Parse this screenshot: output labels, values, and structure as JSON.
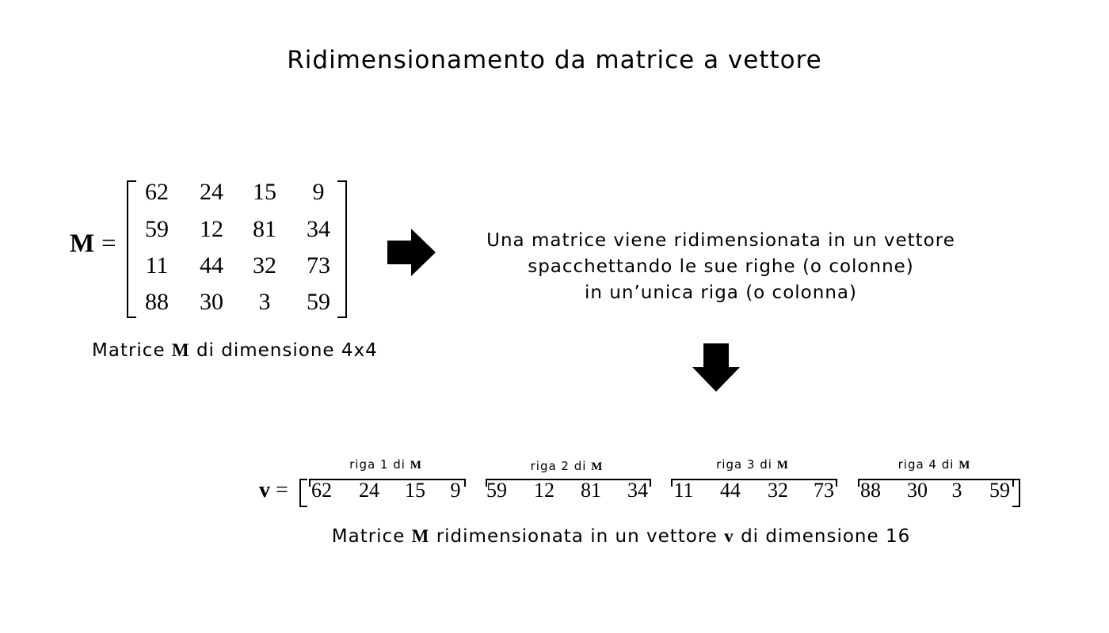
{
  "title": "Ridimensionamento da matrice a vettore",
  "matrix": {
    "symbol": "M",
    "equals": "=",
    "rows": [
      [
        "62",
        "24",
        "15",
        "9"
      ],
      [
        "59",
        "12",
        "81",
        "34"
      ],
      [
        "11",
        "44",
        "32",
        "73"
      ],
      [
        "88",
        "30",
        "3",
        "59"
      ]
    ],
    "caption_pre": "Matrice",
    "caption_symbol": "M",
    "caption_post": "di dimensione 4x4"
  },
  "explanation": {
    "lines": [
      "Una matrice viene ridimensionata in un vettore",
      "spacchettando le sue righe (o colonne)",
      "in un’unica riga (o colonna)"
    ]
  },
  "vector": {
    "symbol": "v",
    "equals": "=",
    "groups": [
      {
        "label": "riga 1 di",
        "label_symbol": "M",
        "values": [
          "62",
          "24",
          "15",
          "9"
        ]
      },
      {
        "label": "riga 2 di",
        "label_symbol": "M",
        "values": [
          "59",
          "12",
          "81",
          "34"
        ]
      },
      {
        "label": "riga 3 di",
        "label_symbol": "M",
        "values": [
          "11",
          "44",
          "32",
          "73"
        ]
      },
      {
        "label": "riga 4 di",
        "label_symbol": "M",
        "values": [
          "88",
          "30",
          "3",
          "59"
        ]
      }
    ],
    "caption_pre": "Matrice",
    "caption_symbol_m": "M",
    "caption_mid": "ridimensionata in un vettore",
    "caption_symbol_v": "v",
    "caption_post": "di dimensione 16"
  },
  "icons": {
    "right_arrow": "arrow-right-icon",
    "down_arrow": "arrow-down-icon"
  }
}
